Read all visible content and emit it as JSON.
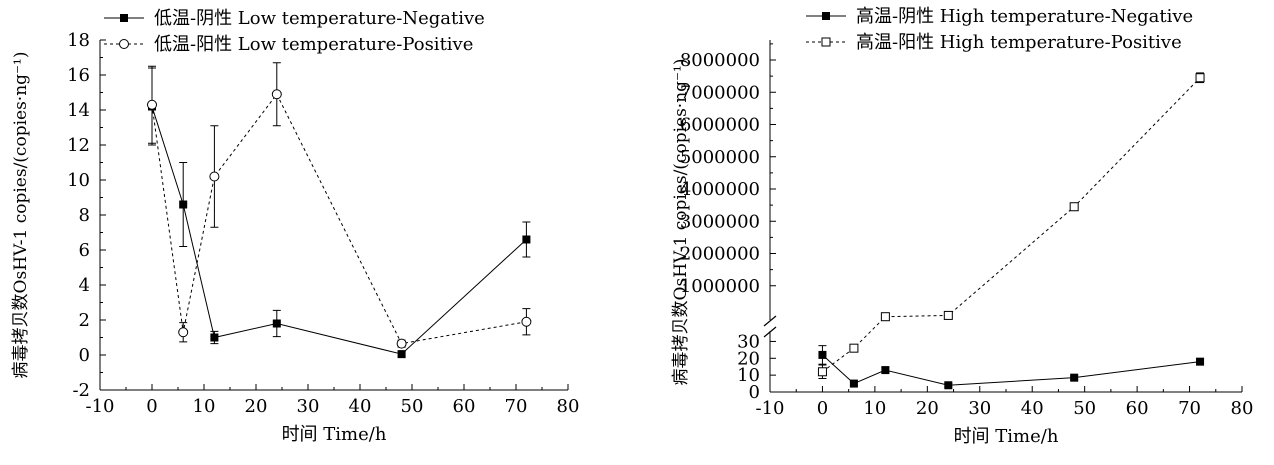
{
  "chart_data": [
    {
      "type": "line",
      "xlabel": "时间 Time/h",
      "ylabel": "病毒拷贝数OsHV-1 copies/(copies·ng⁻¹)",
      "xlim": [
        -10,
        80
      ],
      "ylim": [
        -2,
        18
      ],
      "xticks": [
        -10,
        0,
        10,
        20,
        30,
        40,
        50,
        60,
        70,
        80
      ],
      "yticks": [
        -2,
        0,
        2,
        4,
        6,
        8,
        10,
        12,
        14,
        16,
        18
      ],
      "legend_position": "top-left",
      "series": [
        {
          "name": "低温-阴性 Low temperature-Negative",
          "style": "solid",
          "marker": "filled-square",
          "x": [
            0,
            6,
            12,
            24,
            48,
            72
          ],
          "y": [
            14.2,
            8.6,
            1.0,
            1.8,
            0.05,
            6.6
          ],
          "err": [
            2.2,
            2.4,
            0.35,
            0.75,
            0.15,
            1.0
          ]
        },
        {
          "name": "低温-阳性 Low temperature-Positive",
          "style": "dashed",
          "marker": "open-circle",
          "x": [
            0,
            6,
            12,
            24,
            48,
            72
          ],
          "y": [
            14.3,
            1.3,
            10.2,
            14.9,
            0.65,
            1.9
          ],
          "err": [
            2.2,
            0.55,
            2.9,
            1.8,
            0.2,
            0.75
          ]
        }
      ]
    },
    {
      "type": "line",
      "xlabel": "时间 Time/h",
      "ylabel": "病毒拷贝数OsHV-1 copies/(copies·ng⁻¹)",
      "xlim": [
        -10,
        80
      ],
      "y_axis_break": true,
      "ylim_lower": [
        0,
        35
      ],
      "yticks_lower": [
        0,
        10,
        20,
        30
      ],
      "ylim_upper": [
        0,
        8000000
      ],
      "yticks_upper": [
        1000000,
        2000000,
        3000000,
        4000000,
        5000000,
        6000000,
        7000000,
        8000000
      ],
      "xticks": [
        -10,
        0,
        10,
        20,
        30,
        40,
        50,
        60,
        70,
        80
      ],
      "legend_position": "top-left",
      "series": [
        {
          "name": "高温-阴性 High temperature-Negative",
          "style": "solid",
          "marker": "filled-square",
          "x": [
            0,
            6,
            12,
            24,
            48,
            72
          ],
          "y": [
            22,
            5,
            13,
            4,
            8.5,
            18
          ],
          "err": [
            5.5,
            1.0,
            1.5,
            1.0,
            1.0,
            1.2
          ]
        },
        {
          "name": "高温-阳性 High temperature-Positive",
          "style": "dashed",
          "marker": "open-square",
          "x": [
            0,
            6,
            12,
            24,
            48,
            72
          ],
          "y": [
            12,
            26,
            40000,
            80000,
            3450000,
            7450000
          ],
          "err": [
            4,
            2,
            5000,
            10000,
            60000,
            150000
          ]
        }
      ]
    }
  ]
}
